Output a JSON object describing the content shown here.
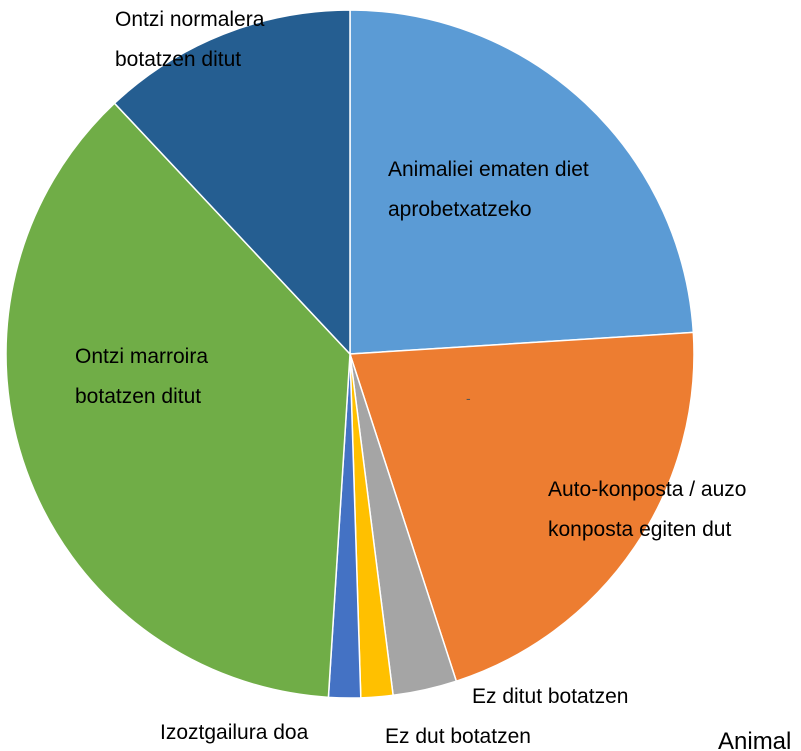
{
  "chart_data": {
    "type": "pie",
    "categories": [
      "Animaliei ematen diet aprobetxatzeko",
      "Auto-konposta / auzo konposta egiten dut",
      "Ez ditut botatzen",
      "Ez dut botatzen",
      "Izoztgailura doa",
      "Ontzi marroira botatzen ditut",
      "Ontzi normalera botatzen ditut"
    ],
    "values": [
      24,
      21,
      3,
      1.5,
      1.5,
      37,
      12
    ],
    "colors": [
      "#5b9bd5",
      "#ed7d31",
      "#a5a5a5",
      "#ffc000",
      "#4472c4",
      "#70ad47",
      "#255e91"
    ],
    "annotations": [
      "-",
      "Animal"
    ]
  }
}
